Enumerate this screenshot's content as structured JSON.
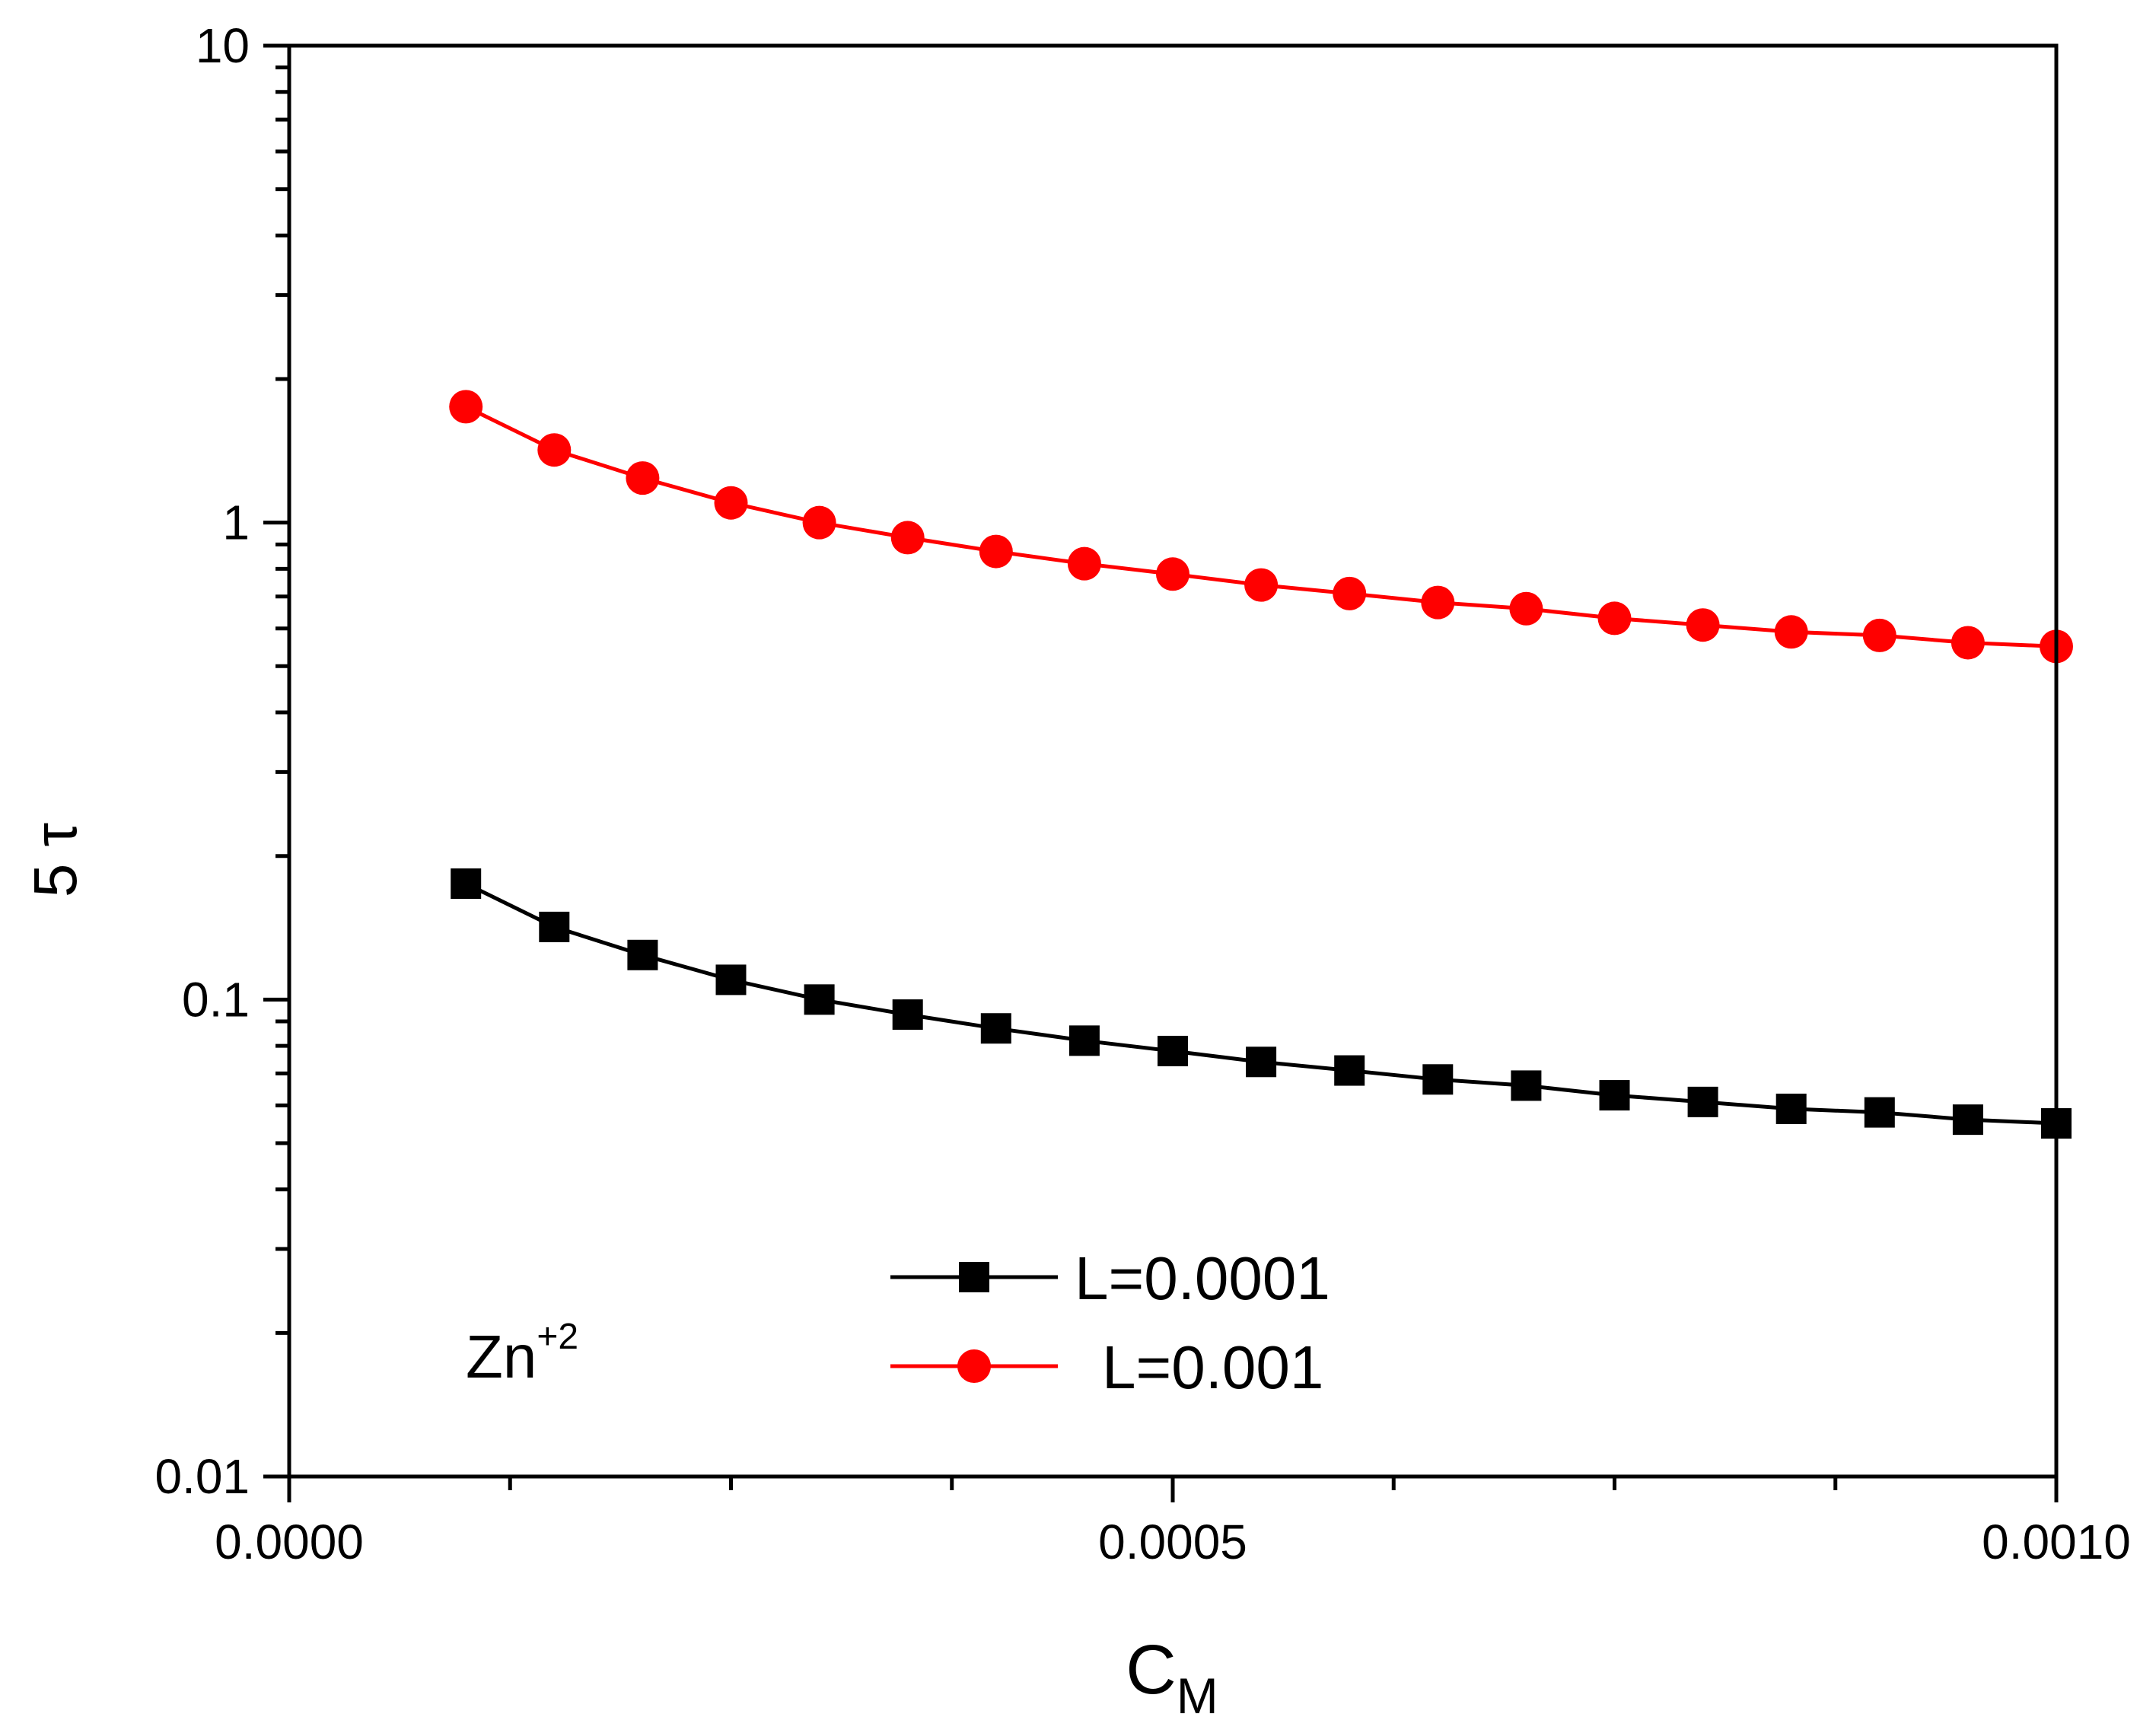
{
  "chart_data": {
    "type": "line",
    "title": "",
    "xlabel_main": "C",
    "xlabel_sub": "M",
    "ylabel": "5 τ",
    "xlim": [
      0,
      0.001
    ],
    "ylim": [
      0.01,
      10
    ],
    "yscale": "log",
    "x_tick_labels": [
      "0.0000",
      "0.0005",
      "0.0010"
    ],
    "x_tick_values": [
      0,
      0.0005,
      0.001
    ],
    "y_tick_labels": [
      "0.01",
      "0.1",
      "1",
      "10"
    ],
    "y_tick_values": [
      0.01,
      0.1,
      1,
      10
    ],
    "grid": false,
    "legend_position": "bottom-center",
    "annotation": {
      "text": "Zn",
      "superscript": "+2"
    },
    "x": [
      0.0001,
      0.00015,
      0.0002,
      0.00025,
      0.0003,
      0.00035,
      0.0004,
      0.00045,
      0.0005,
      0.00055,
      0.0006,
      0.00065,
      0.0007,
      0.00075,
      0.0008,
      0.00085,
      0.0009,
      0.00095,
      0.001
    ],
    "series": [
      {
        "name": "L=0.0001",
        "marker": "square",
        "color": "#000000",
        "values": [
          0.175,
          0.142,
          0.124,
          0.11,
          0.1,
          0.093,
          0.087,
          0.082,
          0.078,
          0.074,
          0.071,
          0.068,
          0.066,
          0.063,
          0.061,
          0.059,
          0.058,
          0.056,
          0.055
        ]
      },
      {
        "name": "L=0.001",
        "marker": "circle",
        "color": "#ff0000",
        "values": [
          1.75,
          1.42,
          1.24,
          1.1,
          1.0,
          0.93,
          0.87,
          0.82,
          0.78,
          0.74,
          0.71,
          0.68,
          0.66,
          0.63,
          0.61,
          0.59,
          0.58,
          0.56,
          0.55
        ]
      }
    ]
  }
}
